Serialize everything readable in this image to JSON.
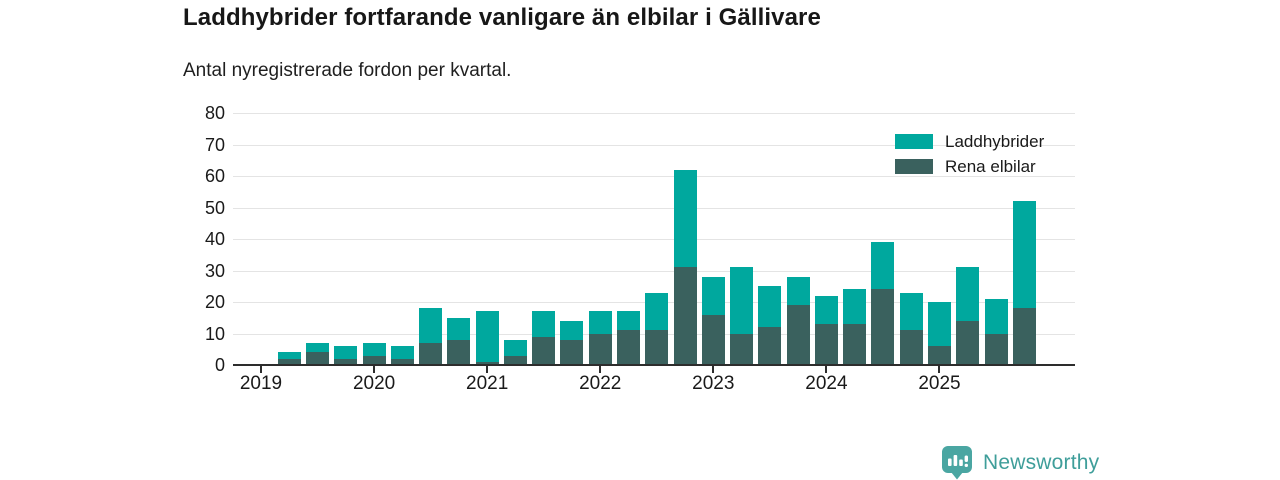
{
  "header": {
    "title": "Laddhybrider fortfarande vanligare än elbilar i Gällivare",
    "subtitle": "Antal nyregistrerade fordon per kvartal."
  },
  "chart_data": {
    "type": "bar",
    "stacked": true,
    "title": "Laddhybrider fortfarande vanligare än elbilar i Gällivare",
    "subtitle": "Antal nyregistrerade fordon per kvartal.",
    "xlabel": "",
    "ylabel": "",
    "ylim": [
      0,
      80
    ],
    "yticks": [
      0,
      10,
      20,
      30,
      40,
      50,
      60,
      70,
      80
    ],
    "grid": "horizontal",
    "legend_position": "top-right",
    "x_years": [
      "2019",
      "2020",
      "2021",
      "2022",
      "2023",
      "2024",
      "2025"
    ],
    "categories": [
      "2019 Q1",
      "2019 Q2",
      "2019 Q3",
      "2019 Q4",
      "2020 Q1",
      "2020 Q2",
      "2020 Q3",
      "2020 Q4",
      "2021 Q1",
      "2021 Q2",
      "2021 Q3",
      "2021 Q4",
      "2022 Q1",
      "2022 Q2",
      "2022 Q3",
      "2022 Q4",
      "2023 Q1",
      "2023 Q2",
      "2023 Q3",
      "2023 Q4",
      "2024 Q1",
      "2024 Q2",
      "2024 Q3",
      "2024 Q4",
      "2025 Q1",
      "2025 Q2",
      "2025 Q3",
      "2025 Q4"
    ],
    "series": [
      {
        "name": "Laddhybrider",
        "color": "#00a89e",
        "values": [
          0,
          2,
          3,
          4,
          4,
          4,
          11,
          7,
          16,
          5,
          8,
          6,
          7,
          6,
          12,
          31,
          12,
          21,
          13,
          9,
          9,
          11,
          15,
          12,
          14,
          17,
          11,
          34
        ]
      },
      {
        "name": "Rena elbilar",
        "color": "#3a615e",
        "values": [
          0,
          2,
          4,
          2,
          3,
          2,
          7,
          8,
          1,
          3,
          9,
          8,
          10,
          11,
          11,
          31,
          16,
          10,
          12,
          19,
          13,
          13,
          24,
          11,
          6,
          14,
          10,
          18
        ]
      }
    ],
    "stack_order_bottom_to_top": [
      "Rena elbilar",
      "Laddhybrider"
    ],
    "totals": [
      0,
      4,
      7,
      6,
      7,
      6,
      18,
      15,
      17,
      8,
      17,
      14,
      17,
      17,
      23,
      62,
      28,
      31,
      25,
      28,
      22,
      24,
      39,
      23,
      20,
      31,
      21,
      52
    ]
  },
  "brand": {
    "name": "Newsworthy",
    "logo_color": "#4aa6a2",
    "text_color": "#3f9e9a"
  }
}
